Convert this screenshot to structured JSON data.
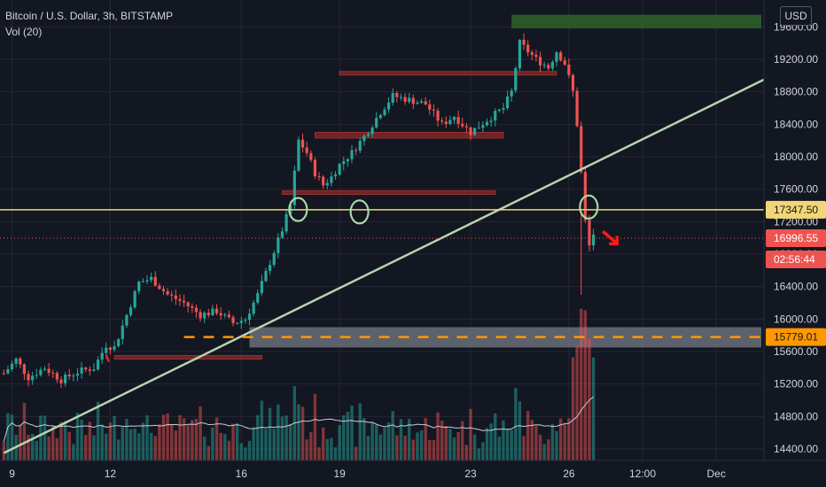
{
  "legend": {
    "symbol": "Bitcoin / U.S. Dollar, 3h, BITSTAMP",
    "indicator": "Vol (20)"
  },
  "currency_button": "USD",
  "colors": {
    "background": "#131722",
    "up": "#26a69a",
    "down": "#ef5350",
    "grid": "#242733",
    "trendline": "#b7d4b0",
    "resistance": "#f2d675",
    "support_dashed": "#ff9800",
    "zone_green": "#2e5e2a",
    "zone_red": "#7a2626",
    "zone_gray": "#6b6f78",
    "annotation_green": "#a8d8a8",
    "annotation_red": "#ff1a1a",
    "volume_ma": "#c9ccd4"
  },
  "price_labels": {
    "resistance": "17347.50",
    "last": "16996.55",
    "countdown": "02:56:44",
    "support": "15779.01"
  },
  "chart_data": {
    "type": "candlestick",
    "title": "Bitcoin / U.S. Dollar, 3h, BITSTAMP",
    "y_ticks": [
      "19600.00",
      "19200.00",
      "18800.00",
      "18400.00",
      "18000.00",
      "17600.00",
      "17200.00",
      "16800.00",
      "16400.00",
      "16000.00",
      "15600.00",
      "15200.00",
      "14800.00",
      "14400.00"
    ],
    "y_tick_values": [
      19600,
      19200,
      18800,
      18400,
      18000,
      17600,
      17200,
      16800,
      16400,
      16000,
      15600,
      15200,
      14800,
      14400
    ],
    "x_ticks": [
      {
        "label": "9",
        "bar": 2
      },
      {
        "label": "12",
        "bar": 26
      },
      {
        "label": "16",
        "bar": 58
      },
      {
        "label": "19",
        "bar": 82
      },
      {
        "label": "23",
        "bar": 114
      },
      {
        "label": "26",
        "bar": 138
      },
      {
        "label": "12:00",
        "bar": 156
      },
      {
        "label": "Dec",
        "bar": 174
      }
    ],
    "ylim": [
      14300,
      19800
    ],
    "bars_visible": 185,
    "key_levels": {
      "resistance": 17347.5,
      "last": 16996.55,
      "support": 15779.01
    },
    "trendline": {
      "from": {
        "bar": 0,
        "price": 14350
      },
      "to": {
        "bar": 185,
        "price": 18950
      }
    },
    "zones": [
      {
        "color": "green",
        "from_bar": 124,
        "to_bar": 185,
        "low": 19580,
        "high": 19750
      },
      {
        "color": "red",
        "from_bar": 82,
        "to_bar": 135,
        "low": 19010,
        "high": 19050
      },
      {
        "color": "red",
        "from_bar": 76,
        "to_bar": 122,
        "low": 18230,
        "high": 18300
      },
      {
        "color": "red",
        "from_bar": 68,
        "to_bar": 120,
        "low": 17540,
        "high": 17580
      },
      {
        "color": "red",
        "from_bar": 27,
        "to_bar": 63,
        "low": 15510,
        "high": 15550
      },
      {
        "color": "gray",
        "from_bar": 60,
        "to_bar": 185,
        "low": 15650,
        "high": 15900
      }
    ],
    "series": [
      {
        "name": "Vol (20)",
        "type": "volume",
        "values": []
      }
    ]
  }
}
